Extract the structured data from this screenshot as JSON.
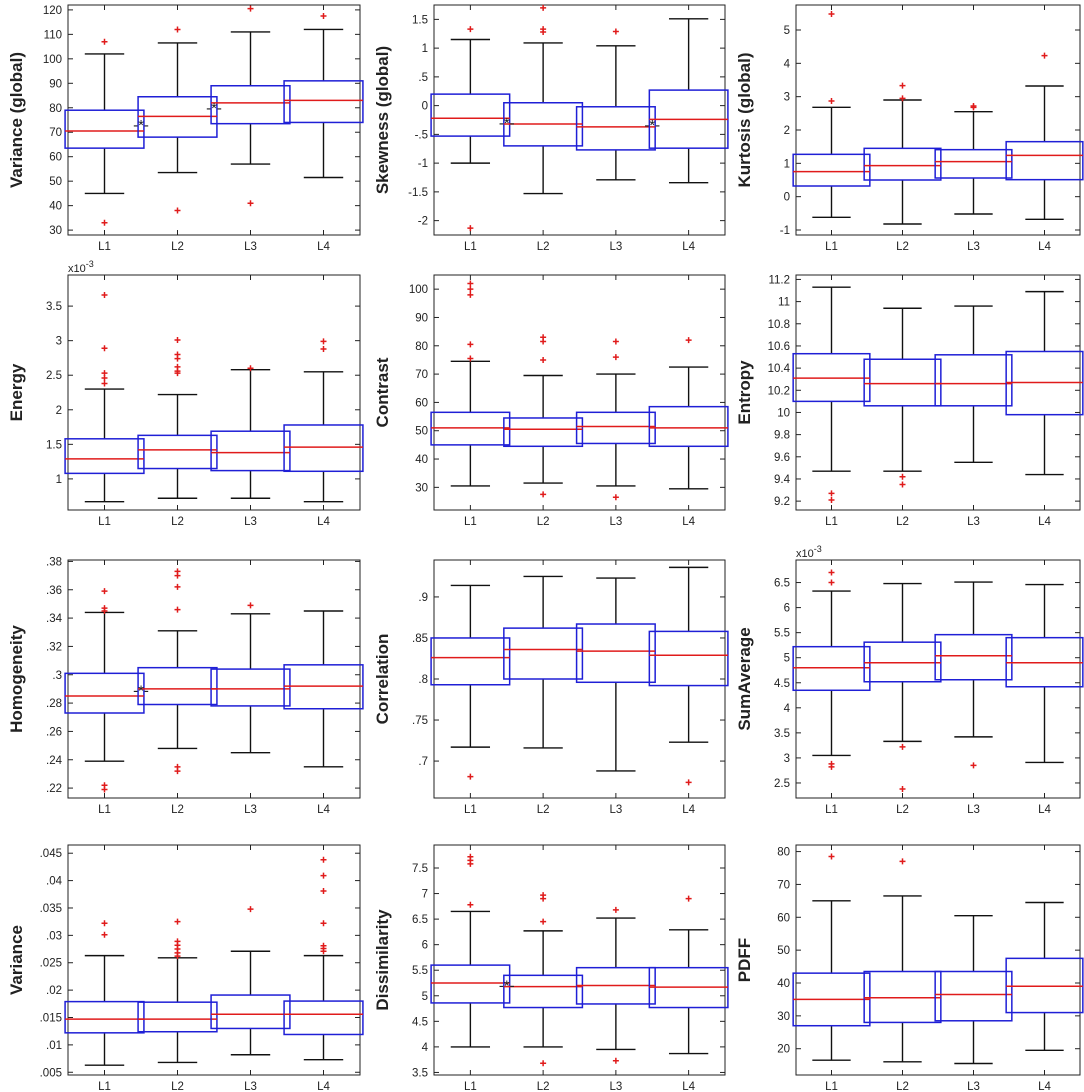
{
  "chart_data": [
    {
      "type": "boxplot",
      "ylabel": "Variance (global)",
      "ylim": [
        28,
        122
      ],
      "yticks": [
        30,
        40,
        50,
        60,
        70,
        80,
        90,
        100,
        110,
        120
      ],
      "exponent": "",
      "categories": [
        "L1",
        "L2",
        "L3",
        "L4"
      ],
      "boxes": [
        {
          "whisker_low": 45,
          "q1": 63.5,
          "median": 70.5,
          "q3": 79,
          "whisker_high": 102,
          "outliers": [
            107,
            33
          ]
        },
        {
          "whisker_low": 53.5,
          "q1": 68,
          "median": 76.5,
          "q3": 84.5,
          "whisker_high": 106.5,
          "outliers": [
            112,
            38
          ]
        },
        {
          "whisker_low": 57,
          "q1": 73.5,
          "median": 82,
          "q3": 89,
          "whisker_high": 111,
          "outliers": [
            120.5,
            41
          ]
        },
        {
          "whisker_low": 51.5,
          "q1": 74,
          "median": 83,
          "q3": 91,
          "whisker_high": 112,
          "outliers": [
            117.5
          ]
        }
      ],
      "significance": [
        {
          "between": [
            0,
            1
          ],
          "y": 73,
          "label": "-*-"
        },
        {
          "between": [
            1,
            2
          ],
          "y": 80,
          "label": "-*-"
        }
      ]
    },
    {
      "type": "boxplot",
      "ylabel": "Skewness (global)",
      "ylim": [
        -2.25,
        1.75
      ],
      "yticks": [
        -2,
        -1.5,
        -1,
        -0.5,
        0,
        0.5,
        1,
        1.5
      ],
      "exponent": "",
      "categories": [
        "L1",
        "L2",
        "L3",
        "L4"
      ],
      "boxes": [
        {
          "whisker_low": -1,
          "q1": -0.53,
          "median": -0.22,
          "q3": 0.2,
          "whisker_high": 1.15,
          "outliers": [
            1.33,
            -2.13
          ]
        },
        {
          "whisker_low": -1.53,
          "q1": -0.7,
          "median": -0.32,
          "q3": 0.05,
          "whisker_high": 1.09,
          "outliers": [
            1.7,
            1.33,
            1.28
          ]
        },
        {
          "whisker_low": -1.29,
          "q1": -0.77,
          "median": -0.37,
          "q3": -0.02,
          "whisker_high": 1.04,
          "outliers": [
            1.29
          ]
        },
        {
          "whisker_low": -1.34,
          "q1": -0.74,
          "median": -0.24,
          "q3": 0.27,
          "whisker_high": 1.51,
          "outliers": []
        }
      ],
      "significance": [
        {
          "between": [
            0,
            1
          ],
          "y": -0.3,
          "label": "-*-"
        },
        {
          "between": [
            2,
            3
          ],
          "y": -0.34,
          "label": "-*-"
        }
      ]
    },
    {
      "type": "boxplot",
      "ylabel": "Kurtosis (global)",
      "ylim": [
        -1.15,
        5.75
      ],
      "yticks": [
        -1,
        0,
        1,
        2,
        3,
        4,
        5
      ],
      "exponent": "",
      "categories": [
        "L1",
        "L2",
        "L3",
        "L4"
      ],
      "boxes": [
        {
          "whisker_low": -0.62,
          "q1": 0.32,
          "median": 0.75,
          "q3": 1.27,
          "whisker_high": 2.68,
          "outliers": [
            5.48,
            2.87
          ]
        },
        {
          "whisker_low": -0.82,
          "q1": 0.5,
          "median": 0.93,
          "q3": 1.45,
          "whisker_high": 2.9,
          "outliers": [
            3.33,
            2.95
          ]
        },
        {
          "whisker_low": -0.52,
          "q1": 0.56,
          "median": 1.05,
          "q3": 1.41,
          "whisker_high": 2.55,
          "outliers": [
            2.72,
            2.68
          ]
        },
        {
          "whisker_low": -0.68,
          "q1": 0.51,
          "median": 1.24,
          "q3": 1.65,
          "whisker_high": 3.32,
          "outliers": [
            4.23
          ]
        }
      ],
      "significance": []
    },
    {
      "type": "boxplot",
      "ylabel": "Energy",
      "ylim": [
        0.55,
        3.95
      ],
      "yticks": [
        1,
        1.5,
        2,
        2.5,
        3,
        3.5
      ],
      "exponent": "x10",
      "exponent_power": "-3",
      "categories": [
        "L1",
        "L2",
        "L3",
        "L4"
      ],
      "boxes": [
        {
          "whisker_low": 0.67,
          "q1": 1.08,
          "median": 1.29,
          "q3": 1.58,
          "whisker_high": 2.3,
          "outliers": [
            3.66,
            2.89,
            2.53,
            2.46,
            2.38
          ]
        },
        {
          "whisker_low": 0.72,
          "q1": 1.15,
          "median": 1.42,
          "q3": 1.63,
          "whisker_high": 2.22,
          "outliers": [
            3.01,
            2.8,
            2.74,
            2.62,
            2.56,
            2.53
          ]
        },
        {
          "whisker_low": 0.72,
          "q1": 1.12,
          "median": 1.38,
          "q3": 1.69,
          "whisker_high": 2.58,
          "outliers": [
            2.6
          ]
        },
        {
          "whisker_low": 0.67,
          "q1": 1.11,
          "median": 1.46,
          "q3": 1.78,
          "whisker_high": 2.55,
          "outliers": [
            2.99,
            2.88
          ]
        }
      ],
      "significance": []
    },
    {
      "type": "boxplot",
      "ylabel": "Contrast",
      "ylim": [
        22,
        105
      ],
      "yticks": [
        30,
        40,
        50,
        60,
        70,
        80,
        90,
        100
      ],
      "exponent": "",
      "categories": [
        "L1",
        "L2",
        "L3",
        "L4"
      ],
      "boxes": [
        {
          "whisker_low": 30.5,
          "q1": 45,
          "median": 51,
          "q3": 56.5,
          "whisker_high": 74.5,
          "outliers": [
            102,
            100,
            98,
            80.5,
            75.5
          ]
        },
        {
          "whisker_low": 31.5,
          "q1": 44.5,
          "median": 50.5,
          "q3": 54.5,
          "whisker_high": 69.5,
          "outliers": [
            83,
            81.5,
            75,
            27.5
          ]
        },
        {
          "whisker_low": 30.5,
          "q1": 45.5,
          "median": 51.5,
          "q3": 56.5,
          "whisker_high": 70,
          "outliers": [
            81.5,
            76,
            26.5
          ]
        },
        {
          "whisker_low": 29.5,
          "q1": 44.5,
          "median": 51,
          "q3": 58.5,
          "whisker_high": 72.5,
          "outliers": [
            82
          ]
        }
      ],
      "significance": []
    },
    {
      "type": "boxplot",
      "ylabel": "Entropy",
      "ylim": [
        9.12,
        11.24
      ],
      "yticks": [
        9.2,
        9.4,
        9.6,
        9.8,
        10,
        10.2,
        10.4,
        10.6,
        10.8,
        11,
        11.2
      ],
      "exponent": "",
      "categories": [
        "L1",
        "L2",
        "L3",
        "L4"
      ],
      "boxes": [
        {
          "whisker_low": 9.47,
          "q1": 10.1,
          "median": 10.31,
          "q3": 10.53,
          "whisker_high": 11.13,
          "outliers": [
            9.27,
            9.21
          ]
        },
        {
          "whisker_low": 9.47,
          "q1": 10.06,
          "median": 10.26,
          "q3": 10.48,
          "whisker_high": 10.94,
          "outliers": [
            9.42,
            9.35
          ]
        },
        {
          "whisker_low": 9.55,
          "q1": 10.06,
          "median": 10.26,
          "q3": 10.52,
          "whisker_high": 10.96,
          "outliers": []
        },
        {
          "whisker_low": 9.44,
          "q1": 9.98,
          "median": 10.27,
          "q3": 10.55,
          "whisker_high": 11.09,
          "outliers": []
        }
      ],
      "significance": []
    },
    {
      "type": "boxplot",
      "ylabel": "Homogeneity",
      "ylim": [
        0.213,
        0.381
      ],
      "yticks": [
        0.22,
        0.24,
        0.26,
        0.28,
        0.3,
        0.32,
        0.34,
        0.36,
        0.38
      ],
      "exponent": "",
      "categories": [
        "L1",
        "L2",
        "L3",
        "L4"
      ],
      "boxes": [
        {
          "whisker_low": 0.239,
          "q1": 0.273,
          "median": 0.285,
          "q3": 0.301,
          "whisker_high": 0.344,
          "outliers": [
            0.359,
            0.347,
            0.345,
            0.222,
            0.219
          ]
        },
        {
          "whisker_low": 0.248,
          "q1": 0.279,
          "median": 0.29,
          "q3": 0.305,
          "whisker_high": 0.331,
          "outliers": [
            0.373,
            0.37,
            0.362,
            0.346,
            0.235,
            0.232
          ]
        },
        {
          "whisker_low": 0.245,
          "q1": 0.278,
          "median": 0.29,
          "q3": 0.304,
          "whisker_high": 0.343,
          "outliers": [
            0.349
          ]
        },
        {
          "whisker_low": 0.235,
          "q1": 0.276,
          "median": 0.292,
          "q3": 0.307,
          "whisker_high": 0.345,
          "outliers": []
        }
      ],
      "significance": [
        {
          "between": [
            0,
            1
          ],
          "y": 0.289,
          "label": "-*-"
        }
      ]
    },
    {
      "type": "boxplot",
      "ylabel": "Correlation",
      "ylim": [
        0.655,
        0.945
      ],
      "yticks": [
        0.7,
        0.75,
        0.8,
        0.85,
        0.9
      ],
      "exponent": "",
      "categories": [
        "L1",
        "L2",
        "L3",
        "L4"
      ],
      "boxes": [
        {
          "whisker_low": 0.717,
          "q1": 0.793,
          "median": 0.826,
          "q3": 0.85,
          "whisker_high": 0.914,
          "outliers": [
            0.681
          ]
        },
        {
          "whisker_low": 0.716,
          "q1": 0.8,
          "median": 0.836,
          "q3": 0.862,
          "whisker_high": 0.925,
          "outliers": []
        },
        {
          "whisker_low": 0.688,
          "q1": 0.796,
          "median": 0.834,
          "q3": 0.867,
          "whisker_high": 0.923,
          "outliers": []
        },
        {
          "whisker_low": 0.723,
          "q1": 0.792,
          "median": 0.829,
          "q3": 0.858,
          "whisker_high": 0.936,
          "outliers": [
            0.674
          ]
        }
      ],
      "significance": []
    },
    {
      "type": "boxplot",
      "ylabel": "SumAverage",
      "ylim": [
        2.2,
        6.95
      ],
      "yticks": [
        2.5,
        3,
        3.5,
        4,
        4.5,
        5,
        5.5,
        6,
        6.5
      ],
      "exponent": "x10",
      "exponent_power": "-3",
      "categories": [
        "L1",
        "L2",
        "L3",
        "L4"
      ],
      "boxes": [
        {
          "whisker_low": 3.05,
          "q1": 4.35,
          "median": 4.8,
          "q3": 5.22,
          "whisker_high": 6.33,
          "outliers": [
            6.7,
            6.5,
            2.88,
            2.82
          ]
        },
        {
          "whisker_low": 3.33,
          "q1": 4.52,
          "median": 4.9,
          "q3": 5.31,
          "whisker_high": 6.48,
          "outliers": [
            3.22,
            2.38
          ]
        },
        {
          "whisker_low": 3.42,
          "q1": 4.56,
          "median": 5.04,
          "q3": 5.46,
          "whisker_high": 6.51,
          "outliers": [
            2.85
          ]
        },
        {
          "whisker_low": 2.91,
          "q1": 4.42,
          "median": 4.9,
          "q3": 5.4,
          "whisker_high": 6.46,
          "outliers": []
        }
      ],
      "significance": []
    },
    {
      "type": "boxplot",
      "ylabel": "Variance",
      "ylim": [
        0.0045,
        0.0465
      ],
      "yticks": [
        0.005,
        0.01,
        0.015,
        0.02,
        0.025,
        0.03,
        0.035,
        0.04,
        0.045
      ],
      "exponent": "",
      "categories": [
        "L1",
        "L2",
        "L3",
        "L4"
      ],
      "boxes": [
        {
          "whisker_low": 0.0063,
          "q1": 0.0122,
          "median": 0.0147,
          "q3": 0.0179,
          "whisker_high": 0.0263,
          "outliers": [
            0.0322,
            0.0301
          ]
        },
        {
          "whisker_low": 0.0068,
          "q1": 0.0124,
          "median": 0.0147,
          "q3": 0.0178,
          "whisker_high": 0.0259,
          "outliers": [
            0.0325,
            0.0289,
            0.0282,
            0.0275,
            0.0268,
            0.0262
          ]
        },
        {
          "whisker_low": 0.0082,
          "q1": 0.013,
          "median": 0.0156,
          "q3": 0.0191,
          "whisker_high": 0.0271,
          "outliers": [
            0.0348
          ]
        },
        {
          "whisker_low": 0.0073,
          "q1": 0.0119,
          "median": 0.0156,
          "q3": 0.018,
          "whisker_high": 0.0263,
          "outliers": [
            0.0438,
            0.0409,
            0.0381,
            0.0322,
            0.0281,
            0.0276,
            0.0271
          ]
        }
      ],
      "significance": []
    },
    {
      "type": "boxplot",
      "ylabel": "Dissimilarity",
      "ylim": [
        3.45,
        7.95
      ],
      "yticks": [
        3.5,
        4,
        4.5,
        5,
        5.5,
        6,
        6.5,
        7,
        7.5
      ],
      "exponent": "",
      "categories": [
        "L1",
        "L2",
        "L3",
        "L4"
      ],
      "boxes": [
        {
          "whisker_low": 4,
          "q1": 4.86,
          "median": 5.25,
          "q3": 5.6,
          "whisker_high": 6.65,
          "outliers": [
            7.72,
            7.65,
            7.58,
            6.78
          ]
        },
        {
          "whisker_low": 4,
          "q1": 4.77,
          "median": 5.18,
          "q3": 5.4,
          "whisker_high": 6.27,
          "outliers": [
            6.97,
            6.9,
            6.45,
            3.68
          ]
        },
        {
          "whisker_low": 3.95,
          "q1": 4.84,
          "median": 5.2,
          "q3": 5.55,
          "whisker_high": 6.52,
          "outliers": [
            6.68,
            3.73
          ]
        },
        {
          "whisker_low": 3.87,
          "q1": 4.77,
          "median": 5.17,
          "q3": 5.55,
          "whisker_high": 6.29,
          "outliers": [
            6.9
          ]
        }
      ],
      "significance": [
        {
          "between": [
            0,
            1
          ],
          "y": 5.2,
          "label": "-*-"
        }
      ]
    },
    {
      "type": "boxplot",
      "ylabel": "PDFF",
      "ylim": [
        12,
        82
      ],
      "yticks": [
        20,
        30,
        40,
        50,
        60,
        70,
        80
      ],
      "exponent": "",
      "categories": [
        "L1",
        "L2",
        "L3",
        "L4"
      ],
      "boxes": [
        {
          "whisker_low": 16.5,
          "q1": 27,
          "median": 35,
          "q3": 43,
          "whisker_high": 65,
          "outliers": [
            78.5
          ]
        },
        {
          "whisker_low": 16,
          "q1": 28,
          "median": 35.5,
          "q3": 43.5,
          "whisker_high": 66.5,
          "outliers": [
            77
          ]
        },
        {
          "whisker_low": 15.5,
          "q1": 28.5,
          "median": 36.5,
          "q3": 43.5,
          "whisker_high": 60.5,
          "outliers": []
        },
        {
          "whisker_low": 19.5,
          "q1": 31,
          "median": 39,
          "q3": 47.5,
          "whisker_high": 64.5,
          "outliers": []
        }
      ],
      "significance": []
    }
  ],
  "colors": {
    "box": "#1f1fd6",
    "median": "#e01b1b",
    "outlier": "#e01b1b",
    "whisker": "#111111",
    "axis": "#222222"
  }
}
